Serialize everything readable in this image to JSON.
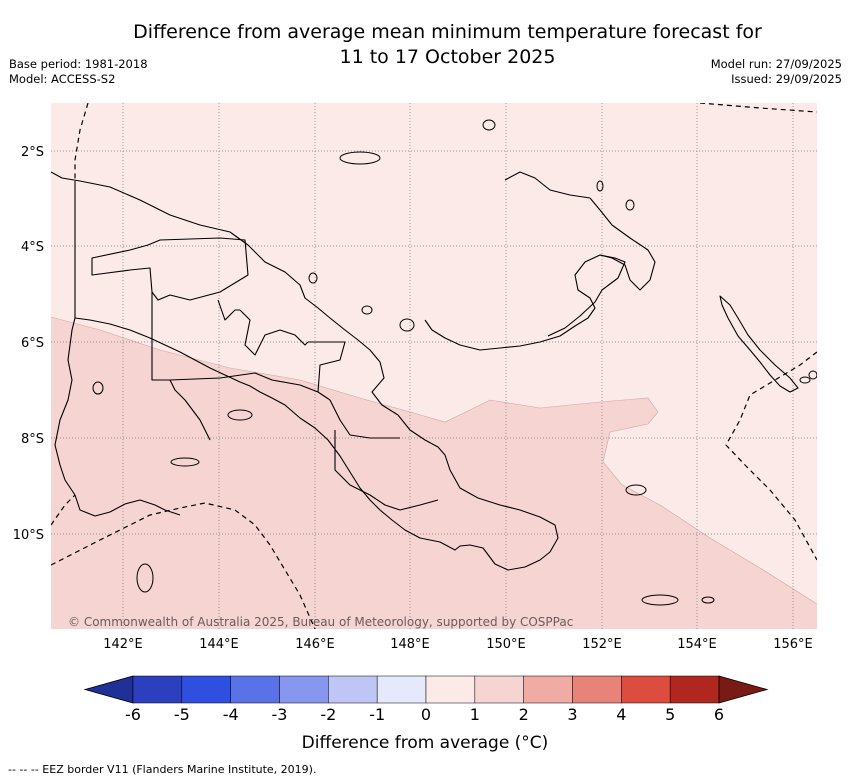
{
  "title": {
    "line1": "Difference from average mean minimum temperature forecast for",
    "line2": "11 to 17 October 2025"
  },
  "meta": {
    "base_period": "Base period: 1981-2018",
    "model": "Model: ACCESS-S2",
    "model_run": "Model run: 27/09/2025",
    "issued": "Issued: 29/09/2025"
  },
  "map": {
    "lat_labels": [
      "2°S",
      "4°S",
      "6°S",
      "8°S",
      "10°S"
    ],
    "lon_labels": [
      "142°E",
      "144°E",
      "146°E",
      "148°E",
      "150°E",
      "152°E",
      "154°E",
      "156°E"
    ],
    "credit": "© Commonwealth of Australia 2025, Bureau of Meteorology, supported by COSPPac",
    "colors": {
      "band_0_1": "#fbeae8",
      "band_1_2": "#f6d4d1",
      "land_line": "#000000",
      "grid": "#777777"
    }
  },
  "colorbar": {
    "ticks": [
      "-6",
      "-5",
      "-4",
      "-3",
      "-2",
      "-1",
      "0",
      "1",
      "2",
      "3",
      "4",
      "5",
      "6"
    ],
    "colors": [
      "#1f3096",
      "#2b3fbf",
      "#2f4fe0",
      "#5a72e8",
      "#8797ef",
      "#bfc6f5",
      "#e6e9fb",
      "#fbeae8",
      "#f6d4d1",
      "#f0aba5",
      "#e8837a",
      "#dc4c3f",
      "#b0271f",
      "#7a1a14"
    ],
    "label": "Difference from average (°C)"
  },
  "footnote": "-- -- -- EEZ border V11 (Flanders Marine Institute, 2019)."
}
